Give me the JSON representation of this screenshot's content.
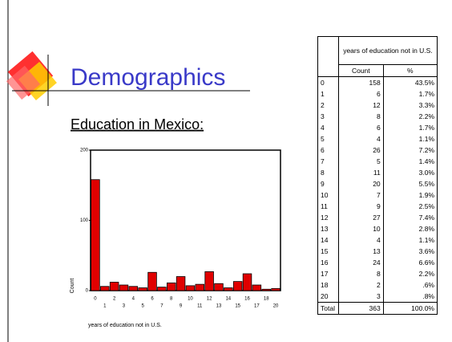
{
  "slide": {
    "title": "Demographics",
    "subtitle": "Education in Mexico:"
  },
  "chart_data": {
    "type": "bar",
    "x_label": "years of education not in U.S.",
    "y_label": "Count",
    "categories": [
      "0",
      "1",
      "2",
      "3",
      "4",
      "5",
      "6",
      "7",
      "8",
      "9",
      "10",
      "11",
      "12",
      "13",
      "14",
      "15",
      "16",
      "17",
      "18",
      "20"
    ],
    "values": [
      158,
      6,
      12,
      8,
      6,
      4,
      26,
      5,
      11,
      20,
      7,
      9,
      27,
      10,
      4,
      13,
      24,
      8,
      2,
      3
    ],
    "color": "#e00000",
    "ylim": [
      0,
      200
    ],
    "yticks": [
      0,
      100,
      200
    ]
  },
  "table": {
    "title": "years of education not in U.S.",
    "columns": [
      "Count",
      "%"
    ],
    "rows": [
      [
        "0",
        158,
        "43.5%"
      ],
      [
        "1",
        6,
        "1.7%"
      ],
      [
        "2",
        12,
        "3.3%"
      ],
      [
        "3",
        8,
        "2.2%"
      ],
      [
        "4",
        6,
        "1.7%"
      ],
      [
        "5",
        4,
        "1.1%"
      ],
      [
        "6",
        26,
        "7.2%"
      ],
      [
        "7",
        5,
        "1.4%"
      ],
      [
        "8",
        11,
        "3.0%"
      ],
      [
        "9",
        20,
        "5.5%"
      ],
      [
        "10",
        7,
        "1.9%"
      ],
      [
        "11",
        9,
        "2.5%"
      ],
      [
        "12",
        27,
        "7.4%"
      ],
      [
        "13",
        10,
        "2.8%"
      ],
      [
        "14",
        4,
        "1.1%"
      ],
      [
        "15",
        13,
        "3.6%"
      ],
      [
        "16",
        24,
        "6.6%"
      ],
      [
        "17",
        8,
        "2.2%"
      ],
      [
        "18",
        2,
        ".6%"
      ],
      [
        "20",
        3,
        ".8%"
      ],
      [
        "Total",
        363,
        "100.0%"
      ]
    ]
  }
}
